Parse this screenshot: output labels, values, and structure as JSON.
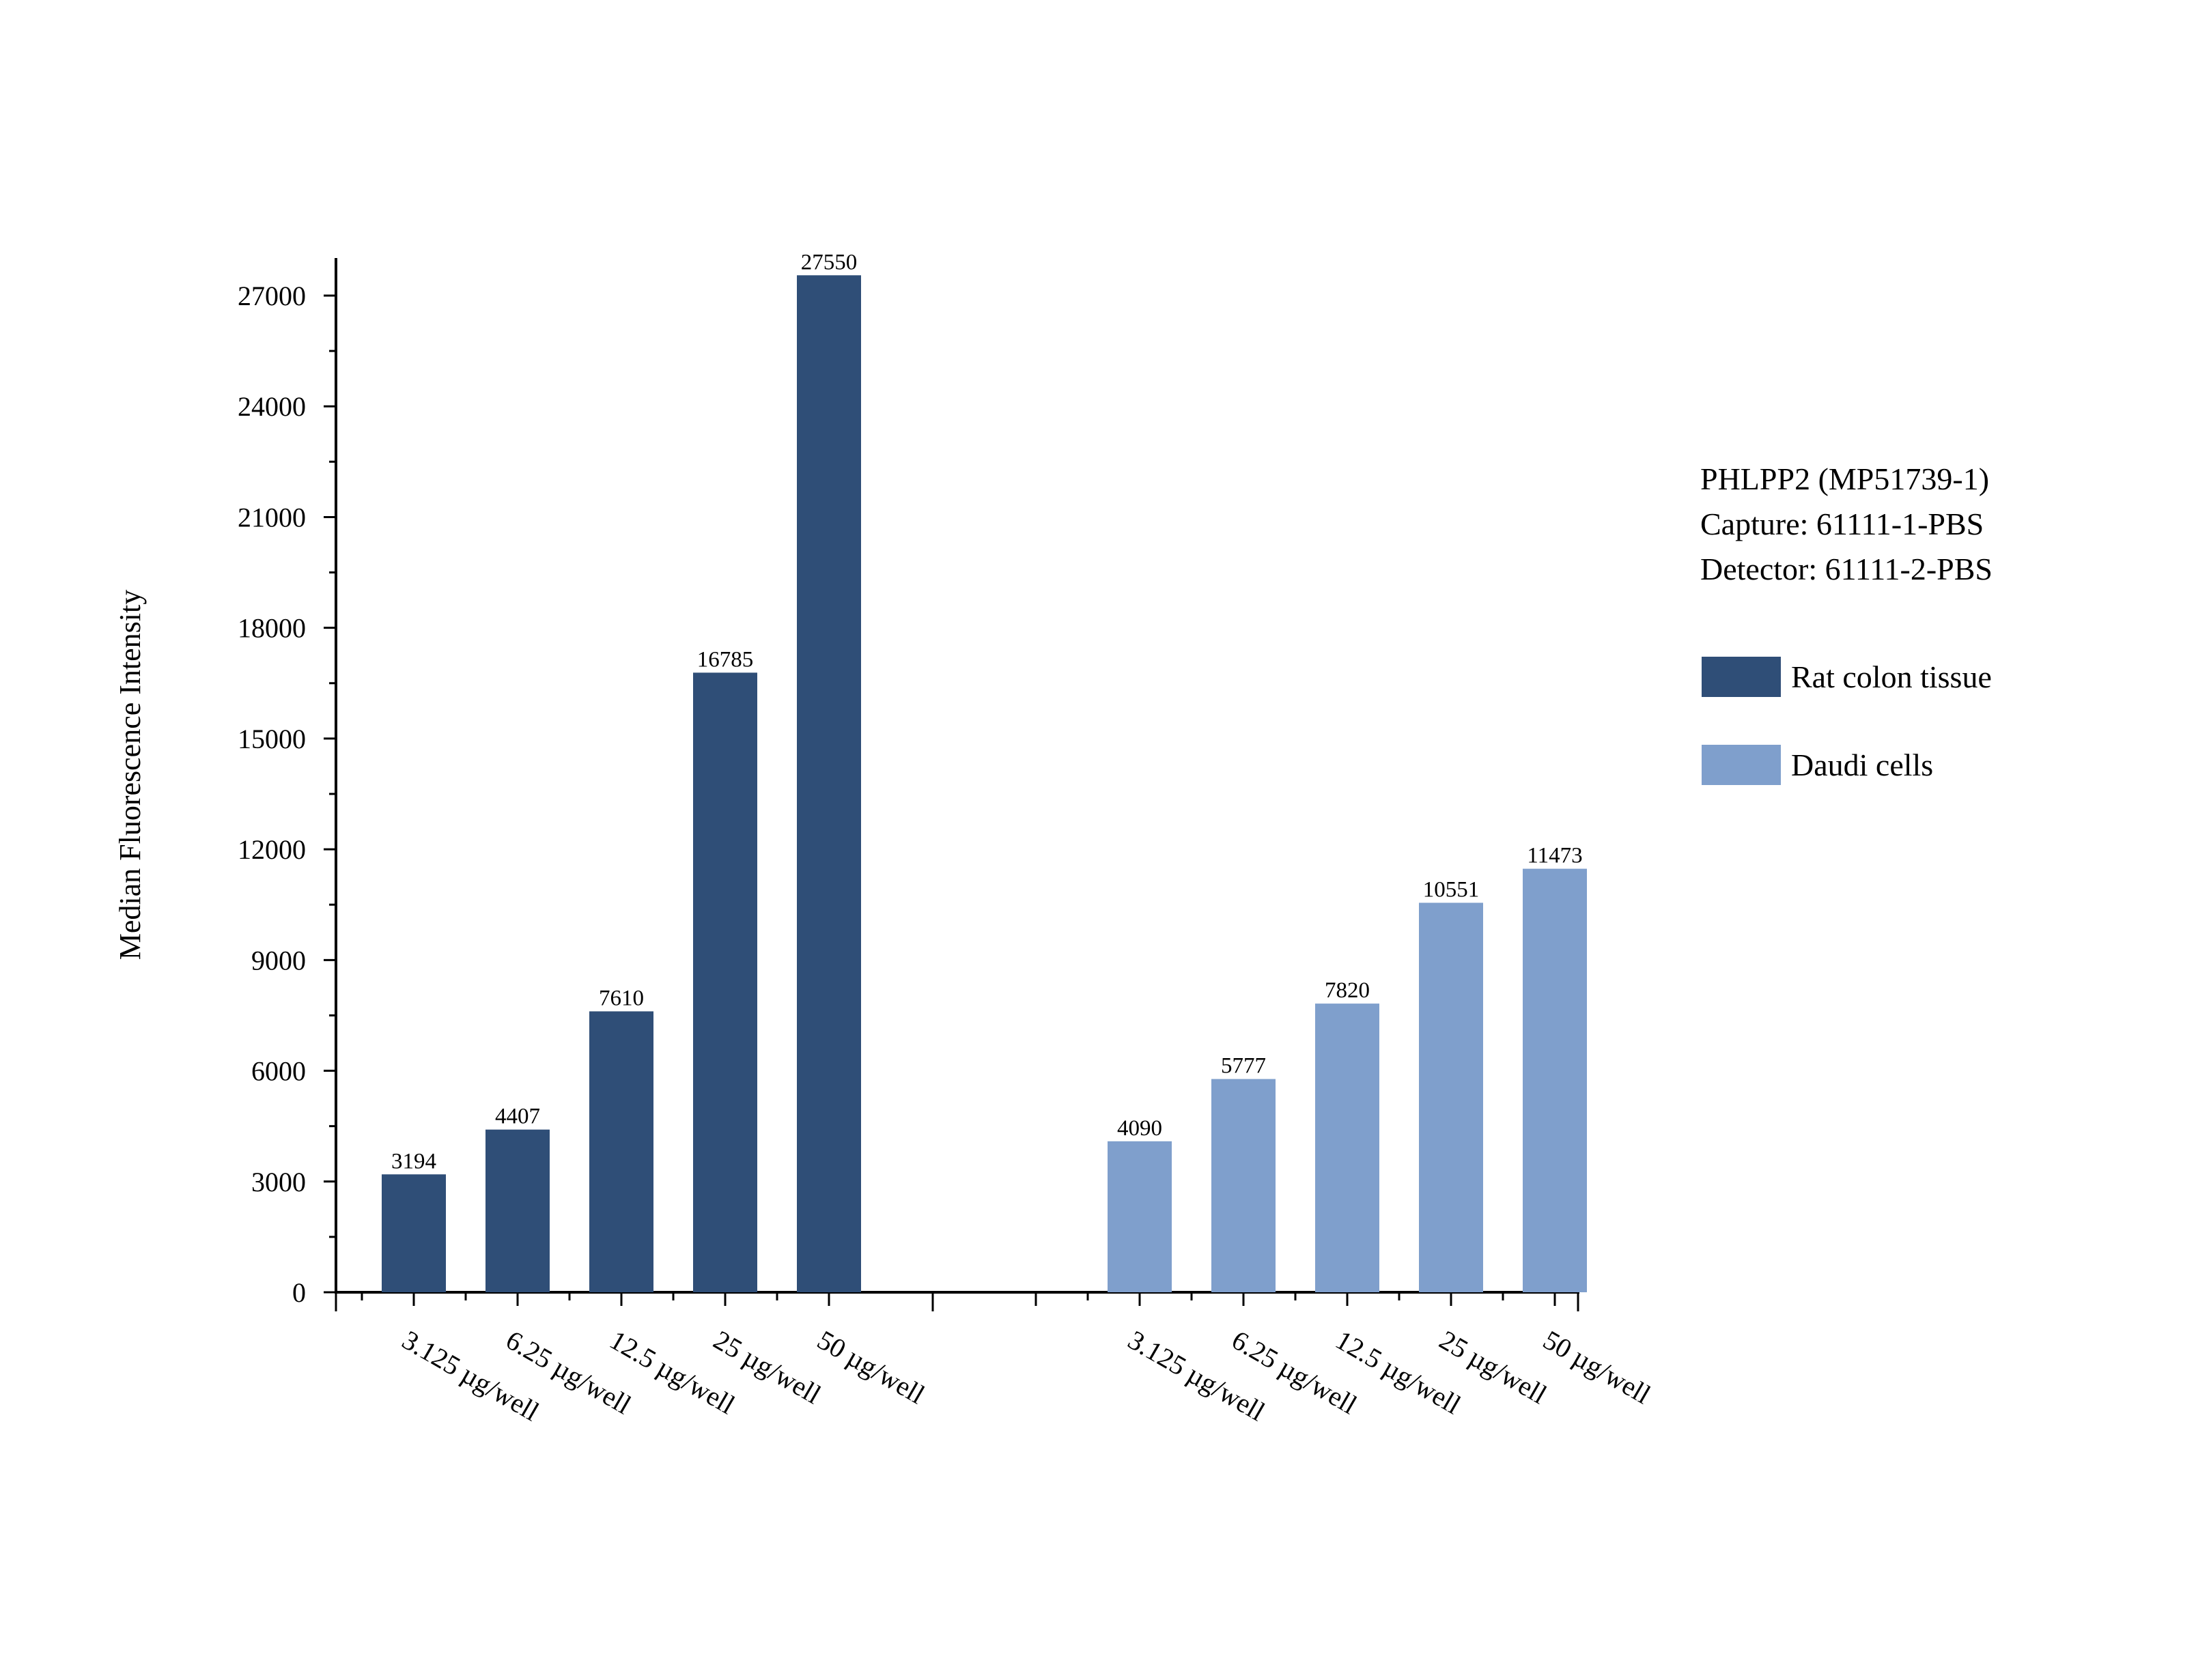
{
  "info_box": {
    "lines": [
      "PHLPP2 (MP51739-1)",
      "Capture: 61111-1-PBS",
      "Detector: 61111-2-PBS"
    ]
  },
  "chart_data": {
    "type": "bar",
    "ylabel": "Median Fluorescence Intensity",
    "xlabel": "",
    "ylim": [
      0,
      28000
    ],
    "yticks": [
      0,
      3000,
      6000,
      9000,
      12000,
      15000,
      18000,
      21000,
      24000,
      27000
    ],
    "grid": false,
    "legend_position": "right",
    "groups": [
      {
        "name": "Rat colon tissue",
        "color": "#2f4e77",
        "categories": [
          "3.125 µg/well",
          "6.25 µg/well",
          "12.5 µg/well",
          "25 µg/well",
          "50 µg/well"
        ],
        "values": [
          3194,
          4407,
          7610,
          16785,
          27550
        ]
      },
      {
        "name": "Daudi cells",
        "color": "#7f9fcc",
        "categories": [
          "3.125 µg/well",
          "6.25 µg/well",
          "12.5 µg/well",
          "25 µg/well",
          "50 µg/well"
        ],
        "values": [
          4090,
          5777,
          7820,
          10551,
          11473
        ]
      }
    ]
  }
}
